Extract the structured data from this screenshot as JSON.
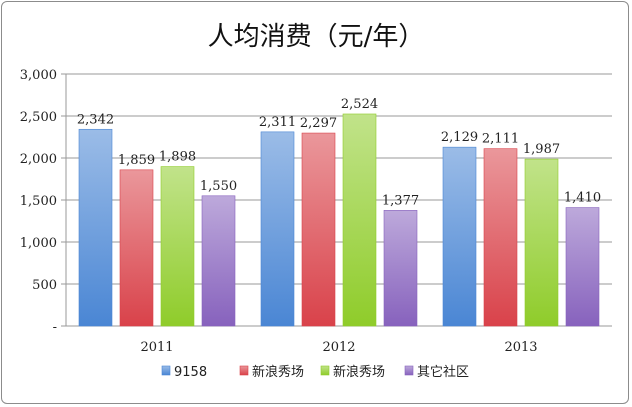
{
  "chart_data": {
    "type": "bar",
    "title": "人均消费（元/年）",
    "categories": [
      "2011",
      "2012",
      "2013"
    ],
    "series": [
      {
        "name": "9158",
        "values": [
          2342,
          2311,
          2129
        ],
        "value_labels": [
          "2,342",
          "2,311",
          "2,129"
        ],
        "color": "#4a86d4"
      },
      {
        "name": "新浪秀场",
        "values": [
          1859,
          2297,
          2111
        ],
        "value_labels": [
          "1,859",
          "2,297",
          "2,111"
        ],
        "color": "#d9424a"
      },
      {
        "name": "新浪秀场",
        "values": [
          1898,
          2524,
          1987
        ],
        "value_labels": [
          "1,898",
          "2,524",
          "1,987"
        ],
        "color": "#8fcc2a"
      },
      {
        "name": "其它社区",
        "values": [
          1550,
          1377,
          1410
        ],
        "value_labels": [
          "1,550",
          "1,377",
          "1,410"
        ],
        "color": "#8762bd"
      }
    ],
    "ylim": [
      0,
      3000
    ],
    "yticks": [
      0,
      500,
      1000,
      1500,
      2000,
      2500,
      3000
    ],
    "ytick_labels": [
      "-",
      "500",
      "1,000",
      "1,500",
      "2,000",
      "2,500",
      "3,000"
    ],
    "xlabel": "",
    "ylabel": "",
    "grid": true,
    "legend_position": "bottom"
  }
}
